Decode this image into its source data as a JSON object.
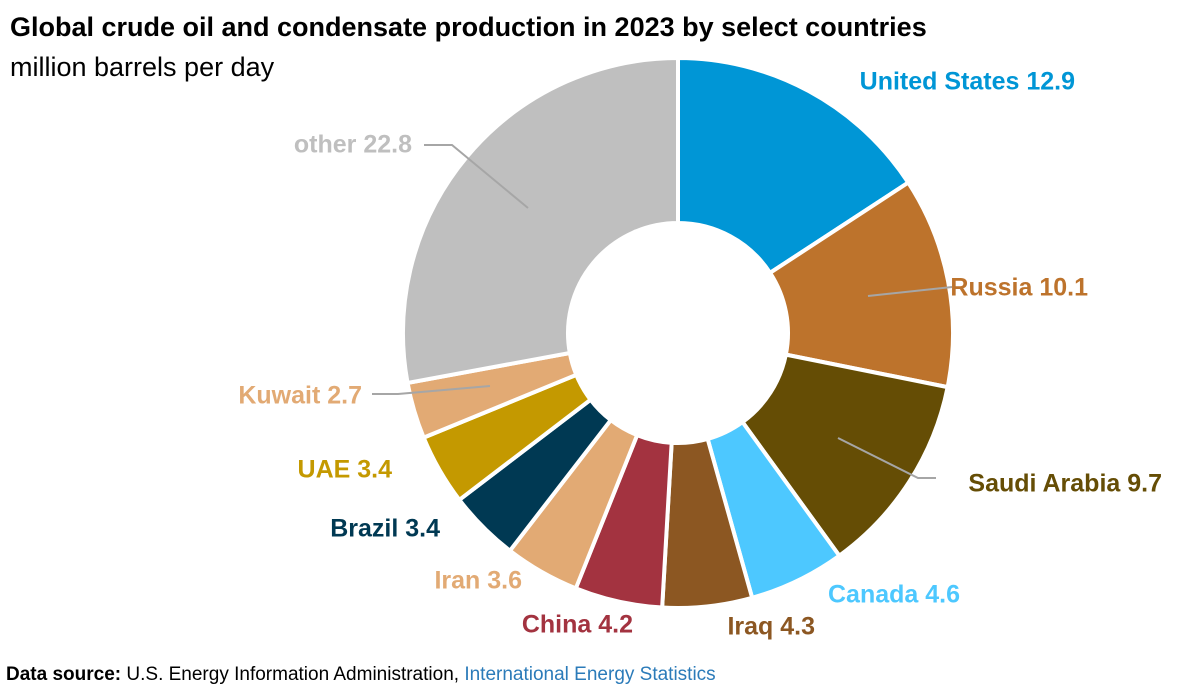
{
  "chart_data": {
    "type": "pie",
    "donut": true,
    "title": "Global crude oil and condensate production in 2023 by select countries",
    "subtitle": "million barrels per day",
    "slices": [
      {
        "name": "United States",
        "value": 12.9,
        "color": "#0096d6"
      },
      {
        "name": "Russia",
        "value": 10.1,
        "color": "#bd732c"
      },
      {
        "name": "Saudi Arabia",
        "value": 9.7,
        "color": "#654d05"
      },
      {
        "name": "Canada",
        "value": 4.6,
        "color": "#4dc8ff"
      },
      {
        "name": "Iraq",
        "value": 4.3,
        "color": "#8c5722"
      },
      {
        "name": "China",
        "value": 4.2,
        "color": "#a33340"
      },
      {
        "name": "Iran",
        "value": 3.6,
        "color": "#e2aa74"
      },
      {
        "name": "Brazil",
        "value": 3.4,
        "color": "#003953"
      },
      {
        "name": "UAE",
        "value": 3.4,
        "color": "#c49900"
      },
      {
        "name": "Kuwait",
        "value": 2.7,
        "color": "#e2aa74"
      },
      {
        "name": "other",
        "value": 22.8,
        "color": "#bfbfbf"
      }
    ]
  },
  "footer": {
    "label": "Data source:",
    "text": "U.S. Energy Information Administration,",
    "link": "International Energy Statistics"
  }
}
